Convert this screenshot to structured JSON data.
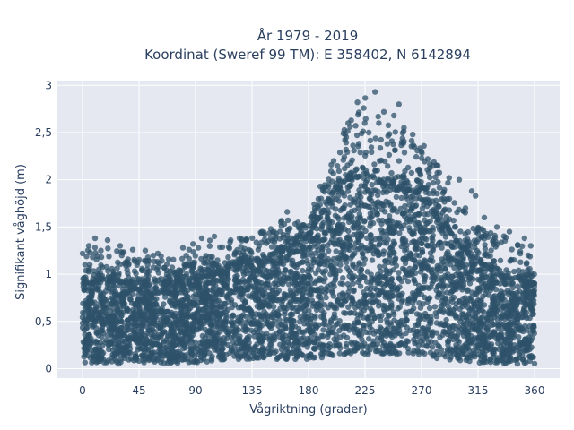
{
  "chart_data": {
    "type": "scatter",
    "title_line1": "År 1979 - 2019",
    "title_line2": "Koordinat (Sweref 99 TM): E 358402, N 6142894",
    "xlabel": "Vågriktning (grader)",
    "ylabel": "Signifikant våghöjd (m)",
    "xlim": [
      -20,
      380
    ],
    "ylim": [
      -0.1,
      3.05
    ],
    "x_ticks": [
      0,
      45,
      90,
      135,
      180,
      225,
      270,
      315,
      360
    ],
    "x_tick_labels": [
      "0",
      "45",
      "90",
      "135",
      "180",
      "225",
      "270",
      "315",
      "360"
    ],
    "y_ticks": [
      0,
      0.5,
      1,
      1.5,
      2,
      2.5,
      3
    ],
    "y_tick_labels": [
      "0",
      "0,5",
      "1",
      "1,5",
      "2",
      "2,5",
      "3"
    ],
    "grid": true,
    "marker_color": "#2e5269",
    "background_color": "#e5e8f0",
    "series": [
      {
        "envelope": {
          "direction": [
            0,
            15,
            30,
            45,
            60,
            75,
            90,
            105,
            120,
            135,
            150,
            165,
            180,
            195,
            210,
            225,
            240,
            255,
            270,
            285,
            300,
            315,
            330,
            345,
            360
          ],
          "dense_upper": [
            0.9,
            0.92,
            0.92,
            0.9,
            0.9,
            0.92,
            0.95,
            1.0,
            1.1,
            1.15,
            1.2,
            1.28,
            1.4,
            1.75,
            2.0,
            2.05,
            1.95,
            1.9,
            1.85,
            1.6,
            1.3,
            1.15,
            1.0,
            0.95,
            0.9
          ],
          "max": [
            1.25,
            1.35,
            1.25,
            1.2,
            1.2,
            1.2,
            1.3,
            1.38,
            1.35,
            1.45,
            1.55,
            1.6,
            1.6,
            2.2,
            2.7,
            2.9,
            2.6,
            2.55,
            2.4,
            2.1,
            1.8,
            1.55,
            1.48,
            1.35,
            1.2
          ],
          "min": [
            0.05,
            0.05,
            0.05,
            0.05,
            0.05,
            0.05,
            0.06,
            0.08,
            0.1,
            0.1,
            0.1,
            0.1,
            0.1,
            0.12,
            0.15,
            0.15,
            0.15,
            0.15,
            0.15,
            0.1,
            0.08,
            0.06,
            0.05,
            0.05,
            0.05
          ]
        },
        "outliers": [
          {
            "x": 233,
            "y": 2.93
          },
          {
            "x": 219,
            "y": 2.82
          },
          {
            "x": 252,
            "y": 2.8
          },
          {
            "x": 224,
            "y": 2.76
          },
          {
            "x": 240,
            "y": 2.72
          },
          {
            "x": 248,
            "y": 2.68
          },
          {
            "x": 214,
            "y": 2.63
          },
          {
            "x": 236,
            "y": 2.6
          },
          {
            "x": 256,
            "y": 2.55
          },
          {
            "x": 228,
            "y": 2.5
          },
          {
            "x": 210,
            "y": 2.45
          },
          {
            "x": 263,
            "y": 2.48
          },
          {
            "x": 270,
            "y": 2.3
          },
          {
            "x": 275,
            "y": 2.22
          },
          {
            "x": 283,
            "y": 2.15
          },
          {
            "x": 292,
            "y": 2.02
          },
          {
            "x": 300,
            "y": 2.0
          },
          {
            "x": 310,
            "y": 1.88
          },
          {
            "x": 313,
            "y": 1.83
          },
          {
            "x": 305,
            "y": 1.7
          },
          {
            "x": 320,
            "y": 1.6
          },
          {
            "x": 330,
            "y": 1.5
          },
          {
            "x": 340,
            "y": 1.45
          },
          {
            "x": 352,
            "y": 1.38
          },
          {
            "x": 357,
            "y": 1.3
          },
          {
            "x": 355,
            "y": 1.2
          },
          {
            "x": 200,
            "y": 2.2
          },
          {
            "x": 196,
            "y": 1.95
          },
          {
            "x": 190,
            "y": 1.8
          },
          {
            "x": 185,
            "y": 1.7
          },
          {
            "x": 163,
            "y": 1.66
          },
          {
            "x": 158,
            "y": 1.55
          },
          {
            "x": 150,
            "y": 1.48
          },
          {
            "x": 143,
            "y": 1.45
          },
          {
            "x": 125,
            "y": 1.38
          },
          {
            "x": 118,
            "y": 1.36
          },
          {
            "x": 105,
            "y": 1.4
          },
          {
            "x": 95,
            "y": 1.38
          },
          {
            "x": 88,
            "y": 1.32
          },
          {
            "x": 80,
            "y": 1.28
          },
          {
            "x": 60,
            "y": 1.22
          },
          {
            "x": 50,
            "y": 1.25
          },
          {
            "x": 40,
            "y": 1.26
          },
          {
            "x": 30,
            "y": 1.3
          },
          {
            "x": 20,
            "y": 1.36
          },
          {
            "x": 10,
            "y": 1.38
          },
          {
            "x": 5,
            "y": 1.3
          },
          {
            "x": 0,
            "y": 1.22
          },
          {
            "x": 2,
            "y": 1.1
          },
          {
            "x": 15,
            "y": 1.18
          }
        ]
      }
    ]
  }
}
